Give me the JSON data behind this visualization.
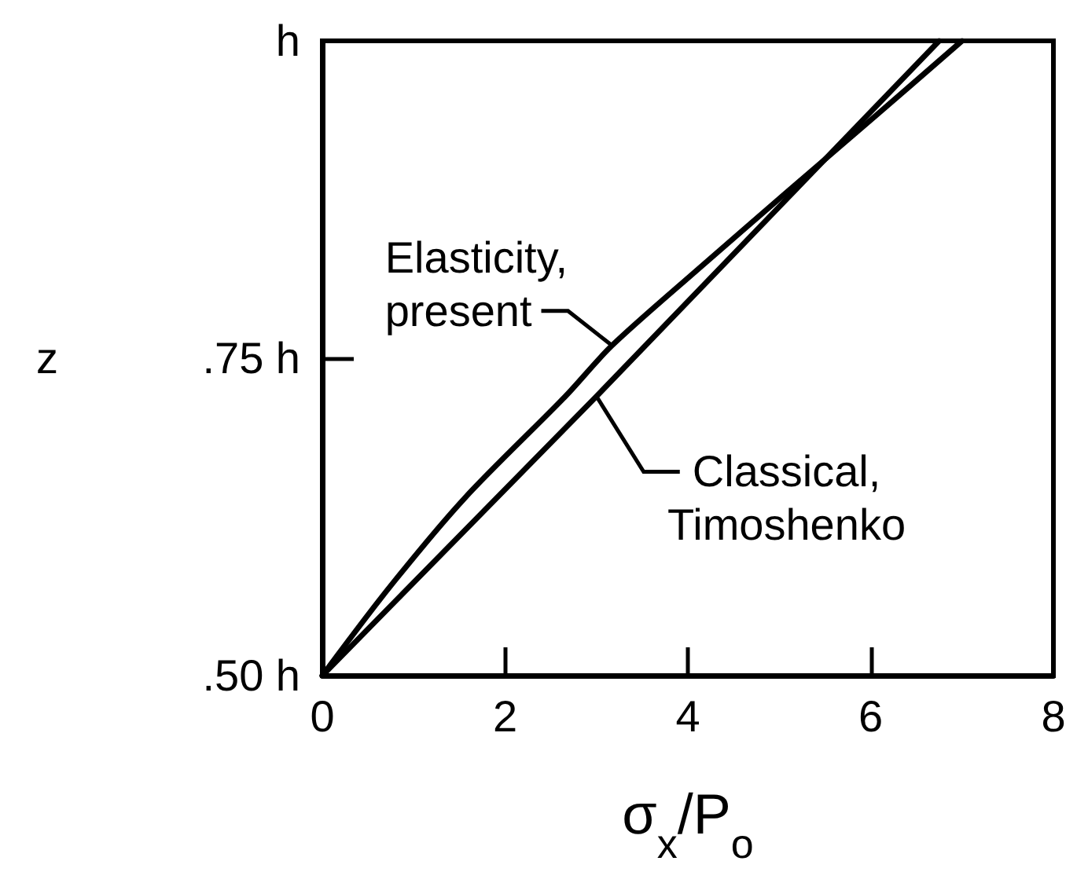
{
  "chart_data": {
    "type": "line",
    "xlabel": "σ$_{x}$/P$_{o}$",
    "ylabel": "z",
    "xlim": [
      0,
      8
    ],
    "xticks": [
      0,
      2,
      4,
      6,
      8
    ],
    "ylim": [
      0.5,
      1
    ],
    "yticks": [
      {
        "value": 0.5,
        "label": ".50 h"
      },
      {
        "value": 0.75,
        "label": ".75 h"
      },
      {
        "value": 1,
        "label": "h"
      }
    ],
    "grid": false,
    "marker": "none",
    "line_style": "solid",
    "series": [
      {
        "name": "Elasticity, present",
        "color": "#000000",
        "x": [
          0,
          0.74,
          1.56,
          2.66,
          3.17,
          4.11,
          5.07,
          6.04,
          7.0
        ],
        "values": [
          0.5,
          0.57,
          0.64,
          0.72,
          0.76,
          0.82,
          0.88,
          0.94,
          1.0
        ]
      },
      {
        "name": "Classical, Timoshenko",
        "color": "#000000",
        "x": [
          0,
          3.0,
          6.75
        ],
        "values": [
          0.5,
          0.72,
          1.0
        ]
      }
    ]
  }
}
